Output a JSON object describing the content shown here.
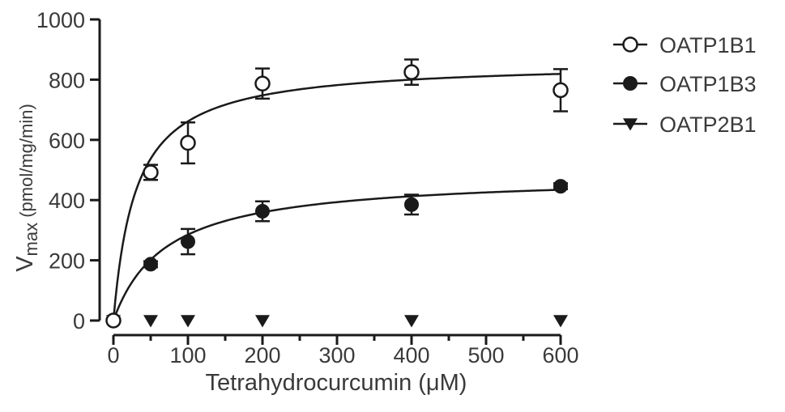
{
  "chart_data": {
    "type": "scatter",
    "xlabel": "Tetrahydrocurcumin (μM)",
    "ylabel": {
      "main": "V",
      "subscript": "max",
      "units": " (pmol/mg/min)"
    },
    "xlim": [
      0,
      600
    ],
    "ylim": [
      0,
      1000
    ],
    "xticks": [
      0,
      100,
      200,
      300,
      400,
      500,
      600
    ],
    "yticks": [
      0,
      200,
      400,
      600,
      800,
      1000
    ],
    "grid": false,
    "legend_position": "top-right",
    "series": [
      {
        "name": "OATP1B1",
        "marker": "open-circle",
        "x": [
          0,
          50,
          100,
          200,
          400,
          600
        ],
        "y": [
          0,
          492,
          590,
          787,
          825,
          765
        ],
        "err": [
          0,
          25,
          68,
          50,
          42,
          70
        ],
        "fit": {
          "model": "Michaelis-Menten",
          "vmax": 860,
          "km": 30
        }
      },
      {
        "name": "OATP1B3",
        "marker": "filled-circle",
        "x": [
          0,
          50,
          100,
          200,
          400,
          600
        ],
        "y": [
          0,
          187,
          262,
          363,
          385,
          446
        ],
        "err": [
          0,
          10,
          42,
          33,
          33,
          10
        ],
        "fit": {
          "model": "Michaelis-Menten",
          "vmax": 485,
          "km": 70
        }
      },
      {
        "name": "OATP2B1",
        "marker": "filled-triangle-down",
        "x": [
          0,
          50,
          100,
          200,
          400,
          600
        ],
        "y": [
          0,
          0,
          0,
          0,
          0,
          0
        ],
        "err": [
          0,
          0,
          0,
          0,
          0,
          0
        ],
        "fit": null
      }
    ],
    "colors": {
      "ink": "#1a1a1a",
      "text": "#3a3a3a"
    }
  }
}
